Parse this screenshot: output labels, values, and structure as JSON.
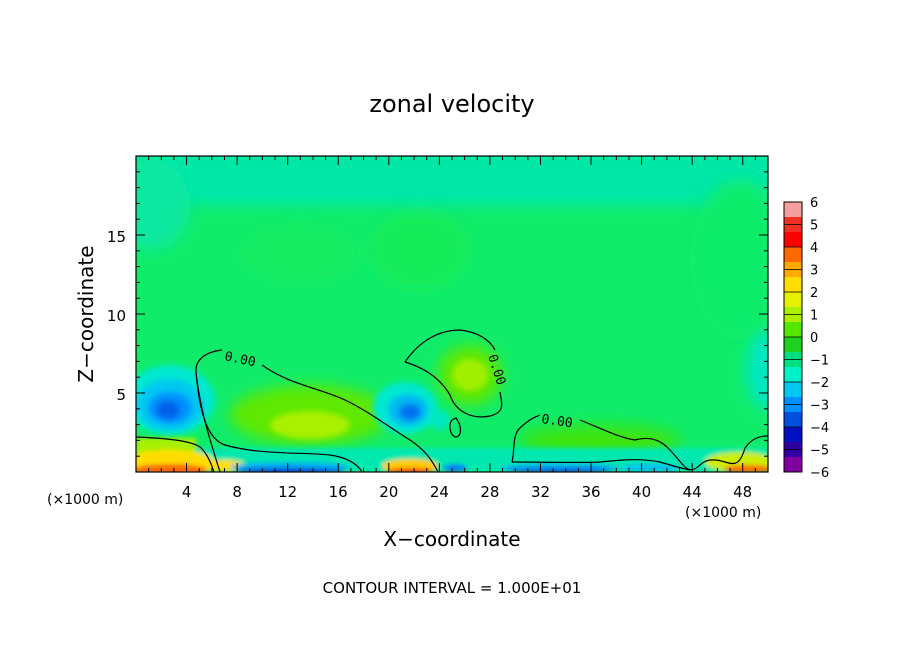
{
  "chart_data": {
    "type": "heatmap",
    "title": "zonal velocity",
    "xlabel": "X−coordinate",
    "ylabel": "Z−coordinate",
    "x_unit_left": "(×1000 m)",
    "x_unit_right": "(×1000 m)",
    "xlim": [
      0,
      50
    ],
    "ylim": [
      0,
      20
    ],
    "x_ticks": [
      "4",
      "8",
      "12",
      "16",
      "20",
      "24",
      "28",
      "32",
      "36",
      "40",
      "44",
      "48"
    ],
    "y_ticks": [
      "5",
      "10",
      "15"
    ],
    "contour_label": "0.00",
    "footer": "CONTOUR INTERVAL = 1.000E+01",
    "colorbar": {
      "tick_labels": [
        "6",
        "5",
        "4",
        "3",
        "2",
        "1",
        "0",
        "−1",
        "−2",
        "−3",
        "−4",
        "−5",
        "−6"
      ],
      "colors": [
        "#f5a0a0",
        "#f03020",
        "#ff0000",
        "#ff6a00",
        "#ffaa00",
        "#ffdd00",
        "#e6f000",
        "#aaf000",
        "#55e600",
        "#20d020",
        "#00e080",
        "#00f0c8",
        "#00c8f0",
        "#0090ff",
        "#0050e0",
        "#0010c0",
        "#3000a0",
        "#8000a0"
      ]
    },
    "features": [
      {
        "kind": "negative-cell",
        "x": 3,
        "z": 4.2,
        "strength": -3
      },
      {
        "kind": "negative-cell",
        "x": 22,
        "z": 3.8,
        "strength": -3
      },
      {
        "kind": "negative-cell",
        "x": 50,
        "z": 6,
        "strength": -2
      },
      {
        "kind": "positive-cell",
        "x": 13,
        "z": 3.5,
        "strength": 1
      },
      {
        "kind": "positive-cell",
        "x": 26,
        "z": 6.5,
        "strength": 1
      },
      {
        "kind": "positive-cell",
        "x": 37,
        "z": 2,
        "strength": 1
      },
      {
        "kind": "surface-max",
        "x": 3,
        "z": 0.3,
        "strength": 4
      },
      {
        "kind": "surface-max",
        "x": 22,
        "z": 0.3,
        "strength": 3
      },
      {
        "kind": "surface-max",
        "x": 49,
        "z": 0.3,
        "strength": 3
      },
      {
        "kind": "surface-min",
        "x": 14,
        "z": 0.3,
        "strength": -4
      },
      {
        "kind": "surface-min",
        "x": 36,
        "z": 0.3,
        "strength": -4
      }
    ]
  }
}
